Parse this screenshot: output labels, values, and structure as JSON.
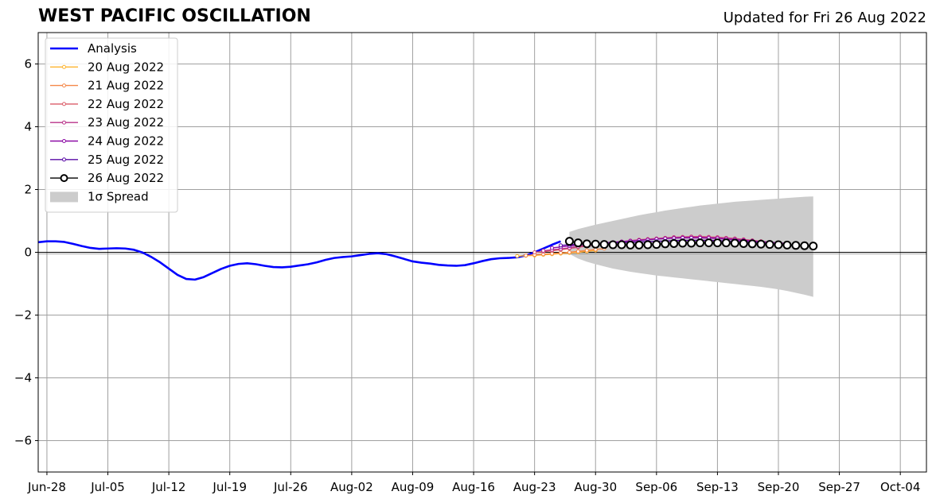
{
  "header": {
    "title": "WEST PACIFIC OSCILLATION",
    "updated": "Updated for Fri 26 Aug 2022"
  },
  "chart_data": {
    "type": "line",
    "title": "WEST PACIFIC OSCILLATION",
    "subtitle": "Updated for Fri 26 Aug 2022",
    "xlabel": "",
    "ylabel": "",
    "x_ticks": [
      "Jun-28",
      "Jul-05",
      "Jul-12",
      "Jul-19",
      "Jul-26",
      "Aug-02",
      "Aug-09",
      "Aug-16",
      "Aug-23",
      "Aug-30",
      "Sep-06",
      "Sep-13",
      "Sep-20",
      "Sep-27",
      "Oct-04"
    ],
    "xlim": [
      "2022-06-27",
      "2022-10-07"
    ],
    "ylim": [
      -7,
      7
    ],
    "y_ticks": [
      -6,
      -4,
      -2,
      0,
      2,
      4,
      6
    ],
    "y_tick_labels": [
      "−6",
      "−4",
      "−2",
      "0",
      "2",
      "4",
      "6"
    ],
    "grid": true,
    "legend_position": "top-left",
    "series": [
      {
        "name": "Analysis",
        "color": "#0000ff",
        "x": [
          "2022-06-27",
          "2022-06-28",
          "2022-06-29",
          "2022-06-30",
          "2022-07-01",
          "2022-07-02",
          "2022-07-03",
          "2022-07-04",
          "2022-07-05",
          "2022-07-06",
          "2022-07-07",
          "2022-07-08",
          "2022-07-09",
          "2022-07-10",
          "2022-07-11",
          "2022-07-12",
          "2022-07-13",
          "2022-07-14",
          "2022-07-15",
          "2022-07-16",
          "2022-07-17",
          "2022-07-18",
          "2022-07-19",
          "2022-07-20",
          "2022-07-21",
          "2022-07-22",
          "2022-07-23",
          "2022-07-24",
          "2022-07-25",
          "2022-07-26",
          "2022-07-27",
          "2022-07-28",
          "2022-07-29",
          "2022-07-30",
          "2022-07-31",
          "2022-08-01",
          "2022-08-02",
          "2022-08-03",
          "2022-08-04",
          "2022-08-05",
          "2022-08-06",
          "2022-08-07",
          "2022-08-08",
          "2022-08-09",
          "2022-08-10",
          "2022-08-11",
          "2022-08-12",
          "2022-08-13",
          "2022-08-14",
          "2022-08-15",
          "2022-08-16",
          "2022-08-17",
          "2022-08-18",
          "2022-08-19",
          "2022-08-20",
          "2022-08-21",
          "2022-08-22",
          "2022-08-23",
          "2022-08-24",
          "2022-08-25",
          "2022-08-26"
        ],
        "values": [
          0.32,
          0.35,
          0.35,
          0.33,
          0.27,
          0.2,
          0.14,
          0.11,
          0.12,
          0.13,
          0.12,
          0.08,
          -0.01,
          -0.15,
          -0.32,
          -0.52,
          -0.72,
          -0.85,
          -0.87,
          -0.79,
          -0.66,
          -0.53,
          -0.43,
          -0.37,
          -0.35,
          -0.38,
          -0.43,
          -0.47,
          -0.48,
          -0.46,
          -0.42,
          -0.38,
          -0.32,
          -0.24,
          -0.18,
          -0.15,
          -0.13,
          -0.09,
          -0.05,
          -0.03,
          -0.06,
          -0.13,
          -0.21,
          -0.29,
          -0.33,
          -0.36,
          -0.4,
          -0.42,
          -0.43,
          -0.41,
          -0.35,
          -0.28,
          -0.22,
          -0.19,
          -0.18,
          -0.16,
          -0.1,
          0.0,
          0.12,
          0.24,
          0.35
        ]
      },
      {
        "name": "20 Aug 2022",
        "color": "#fdb42f",
        "x": [
          "2022-08-21",
          "2022-08-22",
          "2022-08-23",
          "2022-08-24",
          "2022-08-25",
          "2022-08-26",
          "2022-08-27",
          "2022-08-28",
          "2022-08-29",
          "2022-08-30"
        ],
        "values": [
          -0.12,
          -0.11,
          -0.1,
          -0.08,
          -0.06,
          -0.04,
          -0.02,
          0.0,
          0.03,
          0.06
        ]
      },
      {
        "name": "21 Aug 2022",
        "color": "#f48849",
        "x": [
          "2022-08-22",
          "2022-08-23",
          "2022-08-24",
          "2022-08-25",
          "2022-08-26",
          "2022-08-27",
          "2022-08-28",
          "2022-08-29",
          "2022-08-30",
          "2022-08-31"
        ],
        "values": [
          -0.1,
          -0.08,
          -0.06,
          -0.04,
          -0.02,
          0.0,
          0.03,
          0.06,
          0.09,
          0.12
        ]
      },
      {
        "name": "22 Aug 2022",
        "color": "#db5c68",
        "x": [
          "2022-08-23",
          "2022-08-24",
          "2022-08-25",
          "2022-08-26",
          "2022-08-27",
          "2022-08-28",
          "2022-08-29",
          "2022-08-30",
          "2022-08-31",
          "2022-09-01",
          "2022-09-02",
          "2022-09-03",
          "2022-09-04",
          "2022-09-05",
          "2022-09-06",
          "2022-09-07",
          "2022-09-08",
          "2022-09-09",
          "2022-09-10",
          "2022-09-11",
          "2022-09-12",
          "2022-09-13",
          "2022-09-14",
          "2022-09-15",
          "2022-09-16",
          "2022-09-17",
          "2022-09-18",
          "2022-09-19",
          "2022-09-20"
        ],
        "values": [
          0.0,
          0.02,
          0.05,
          0.08,
          0.12,
          0.16,
          0.2,
          0.24,
          0.28,
          0.31,
          0.34,
          0.37,
          0.4,
          0.42,
          0.44,
          0.46,
          0.48,
          0.49,
          0.5,
          0.5,
          0.49,
          0.48,
          0.46,
          0.44,
          0.41,
          0.38,
          0.35,
          0.32,
          0.3
        ]
      },
      {
        "name": "23 Aug 2022",
        "color": "#b83289",
        "x": [
          "2022-08-24",
          "2022-08-25",
          "2022-08-26",
          "2022-08-27",
          "2022-08-28",
          "2022-08-29",
          "2022-08-30",
          "2022-08-31",
          "2022-09-01",
          "2022-09-02",
          "2022-09-03",
          "2022-09-04",
          "2022-09-05",
          "2022-09-06",
          "2022-09-07",
          "2022-09-08",
          "2022-09-09",
          "2022-09-10",
          "2022-09-11",
          "2022-09-12",
          "2022-09-13",
          "2022-09-14",
          "2022-09-15",
          "2022-09-16",
          "2022-09-17",
          "2022-09-18",
          "2022-09-19",
          "2022-09-20",
          "2022-09-21"
        ],
        "values": [
          0.05,
          0.08,
          0.11,
          0.14,
          0.18,
          0.22,
          0.25,
          0.28,
          0.31,
          0.34,
          0.37,
          0.39,
          0.41,
          0.43,
          0.45,
          0.47,
          0.48,
          0.49,
          0.49,
          0.48,
          0.47,
          0.45,
          0.43,
          0.4,
          0.37,
          0.34,
          0.31,
          0.29,
          0.27
        ]
      },
      {
        "name": "24 Aug 2022",
        "color": "#8b0aa5",
        "x": [
          "2022-08-25",
          "2022-08-26",
          "2022-08-27",
          "2022-08-28",
          "2022-08-29",
          "2022-08-30",
          "2022-08-31",
          "2022-09-01",
          "2022-09-02",
          "2022-09-03",
          "2022-09-04",
          "2022-09-05",
          "2022-09-06",
          "2022-09-07",
          "2022-09-08",
          "2022-09-09",
          "2022-09-10",
          "2022-09-11",
          "2022-09-12",
          "2022-09-13",
          "2022-09-14",
          "2022-09-15",
          "2022-09-16",
          "2022-09-17",
          "2022-09-18",
          "2022-09-19",
          "2022-09-20",
          "2022-09-21"
        ],
        "values": [
          0.14,
          0.17,
          0.2,
          0.23,
          0.26,
          0.28,
          0.3,
          0.32,
          0.34,
          0.36,
          0.38,
          0.4,
          0.42,
          0.44,
          0.45,
          0.46,
          0.46,
          0.46,
          0.45,
          0.44,
          0.42,
          0.4,
          0.38,
          0.36,
          0.34,
          0.32,
          0.3,
          0.28
        ]
      },
      {
        "name": "25 Aug 2022",
        "color": "#5a0ba6",
        "x": [
          "2022-08-26",
          "2022-08-27",
          "2022-08-28",
          "2022-08-29",
          "2022-08-30",
          "2022-08-31",
          "2022-09-01",
          "2022-09-02",
          "2022-09-03",
          "2022-09-04",
          "2022-09-05",
          "2022-09-06",
          "2022-09-07",
          "2022-09-08",
          "2022-09-09",
          "2022-09-10",
          "2022-09-11",
          "2022-09-12",
          "2022-09-13",
          "2022-09-14",
          "2022-09-15",
          "2022-09-16",
          "2022-09-17",
          "2022-09-18",
          "2022-09-19",
          "2022-09-20",
          "2022-09-21",
          "2022-09-22"
        ],
        "values": [
          0.22,
          0.24,
          0.26,
          0.27,
          0.28,
          0.29,
          0.3,
          0.31,
          0.32,
          0.33,
          0.34,
          0.35,
          0.36,
          0.37,
          0.38,
          0.38,
          0.38,
          0.38,
          0.37,
          0.36,
          0.35,
          0.34,
          0.32,
          0.3,
          0.28,
          0.26,
          0.24,
          0.22
        ]
      },
      {
        "name": "26 Aug 2022",
        "color": "#000000",
        "x": [
          "2022-08-27",
          "2022-08-28",
          "2022-08-29",
          "2022-08-30",
          "2022-08-31",
          "2022-09-01",
          "2022-09-02",
          "2022-09-03",
          "2022-09-04",
          "2022-09-05",
          "2022-09-06",
          "2022-09-07",
          "2022-09-08",
          "2022-09-09",
          "2022-09-10",
          "2022-09-11",
          "2022-09-12",
          "2022-09-13",
          "2022-09-14",
          "2022-09-15",
          "2022-09-16",
          "2022-09-17",
          "2022-09-18",
          "2022-09-19",
          "2022-09-20",
          "2022-09-21",
          "2022-09-22",
          "2022-09-23",
          "2022-09-24"
        ],
        "values": [
          0.35,
          0.3,
          0.27,
          0.26,
          0.25,
          0.24,
          0.24,
          0.23,
          0.23,
          0.24,
          0.25,
          0.27,
          0.28,
          0.29,
          0.29,
          0.3,
          0.3,
          0.3,
          0.3,
          0.29,
          0.28,
          0.27,
          0.26,
          0.25,
          0.24,
          0.23,
          0.22,
          0.21,
          0.2
        ]
      }
    ],
    "spread": {
      "name": "1σ Spread",
      "color": "#cccccc",
      "x": [
        "2022-08-27",
        "2022-08-28",
        "2022-08-29",
        "2022-08-30",
        "2022-08-31",
        "2022-09-01",
        "2022-09-02",
        "2022-09-03",
        "2022-09-04",
        "2022-09-05",
        "2022-09-06",
        "2022-09-07",
        "2022-09-08",
        "2022-09-09",
        "2022-09-10",
        "2022-09-11",
        "2022-09-12",
        "2022-09-13",
        "2022-09-14",
        "2022-09-15",
        "2022-09-16",
        "2022-09-17",
        "2022-09-18",
        "2022-09-19",
        "2022-09-20",
        "2022-09-21",
        "2022-09-22",
        "2022-09-23",
        "2022-09-24"
      ],
      "upper": [
        0.65,
        0.74,
        0.81,
        0.88,
        0.94,
        1.0,
        1.06,
        1.12,
        1.18,
        1.23,
        1.28,
        1.33,
        1.37,
        1.41,
        1.45,
        1.49,
        1.52,
        1.55,
        1.58,
        1.61,
        1.63,
        1.65,
        1.67,
        1.69,
        1.71,
        1.73,
        1.75,
        1.77,
        1.78
      ],
      "lower": [
        -0.05,
        -0.2,
        -0.3,
        -0.38,
        -0.45,
        -0.52,
        -0.57,
        -0.62,
        -0.66,
        -0.7,
        -0.74,
        -0.77,
        -0.8,
        -0.83,
        -0.86,
        -0.89,
        -0.92,
        -0.95,
        -0.98,
        -1.01,
        -1.04,
        -1.07,
        -1.1,
        -1.14,
        -1.18,
        -1.23,
        -1.29,
        -1.35,
        -1.42
      ]
    },
    "legend": [
      {
        "label": "Analysis",
        "color": "#0000ff",
        "kind": "line"
      },
      {
        "label": "20 Aug 2022",
        "color": "#fdb42f",
        "kind": "marker"
      },
      {
        "label": "21 Aug 2022",
        "color": "#f48849",
        "kind": "marker"
      },
      {
        "label": "22 Aug 2022",
        "color": "#db5c68",
        "kind": "marker"
      },
      {
        "label": "23 Aug 2022",
        "color": "#b83289",
        "kind": "marker"
      },
      {
        "label": "24 Aug 2022",
        "color": "#8b0aa5",
        "kind": "marker"
      },
      {
        "label": "25 Aug 2022",
        "color": "#5a0ba6",
        "kind": "marker"
      },
      {
        "label": "26 Aug 2022",
        "color": "#000000",
        "kind": "bigmarker"
      },
      {
        "label": "1σ Spread",
        "color": "#cccccc",
        "kind": "patch"
      }
    ]
  }
}
